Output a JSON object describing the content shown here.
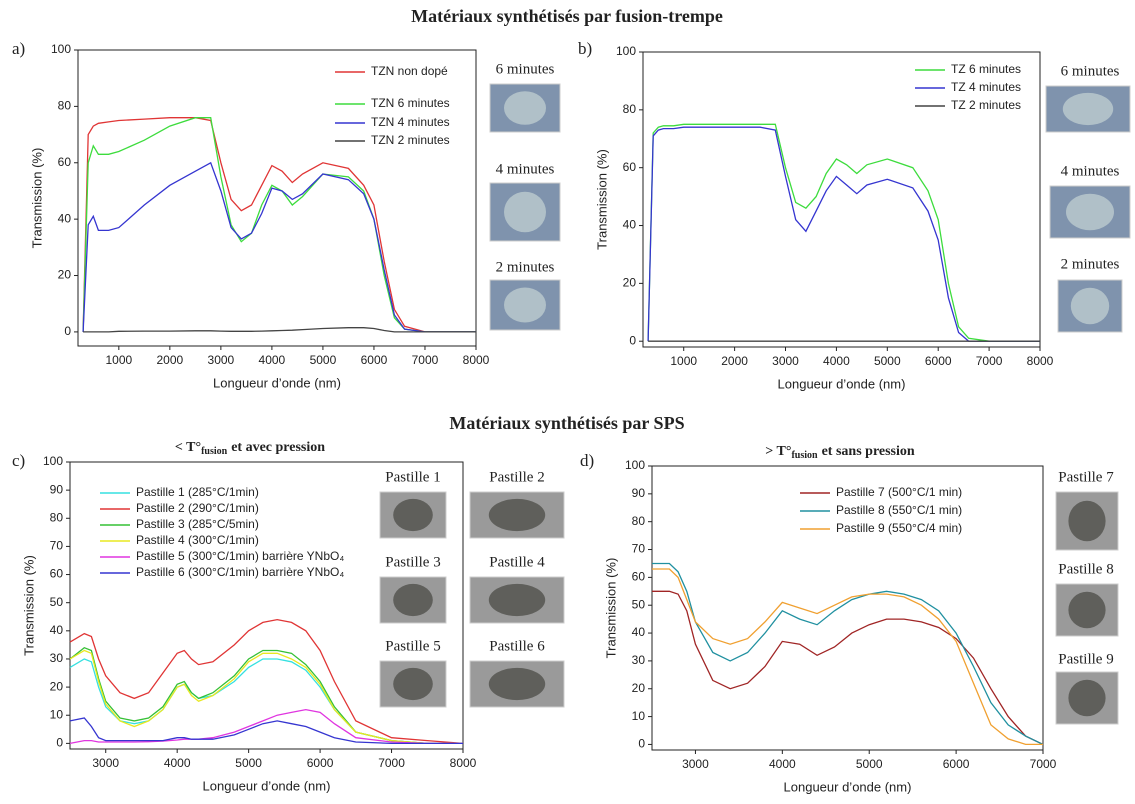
{
  "headings": {
    "top": "Matériaux synthétisés par fusion-trempe",
    "bottom": "Matériaux synthétisés par SPS"
  },
  "chart_data": [
    {
      "type": "line",
      "panel": "a)",
      "xlabel": "Longueur d’onde (nm)",
      "ylabel": "Transmission (%)",
      "x": [
        300,
        400,
        500,
        600,
        800,
        1000,
        1500,
        2000,
        2500,
        2800,
        3000,
        3200,
        3400,
        3600,
        3800,
        4000,
        4200,
        4400,
        4600,
        5000,
        5500,
        5800,
        6000,
        6200,
        6400,
        6600,
        7000,
        8000
      ],
      "xlim": [
        200,
        8000
      ],
      "xticks": [
        1000,
        2000,
        3000,
        4000,
        5000,
        6000,
        7000,
        8000
      ],
      "ylim": [
        -5,
        100
      ],
      "yticks": [
        0,
        20,
        40,
        60,
        80,
        100
      ],
      "legend": "upper right",
      "series": [
        {
          "name": "TZN non dopé",
          "color": "#e03535",
          "values": [
            0,
            70,
            73,
            74,
            74.5,
            75,
            75.5,
            76,
            76,
            75,
            60,
            47,
            43,
            45,
            52,
            59,
            57,
            53,
            56,
            60,
            58,
            52,
            45,
            25,
            8,
            2,
            0,
            0
          ]
        },
        {
          "name": "TZN 6 minutes",
          "color": "#3ddc3d",
          "values": [
            0,
            60,
            66,
            63,
            63,
            64,
            68,
            73,
            76,
            76,
            55,
            38,
            32,
            35,
            45,
            52,
            50,
            45,
            48,
            56,
            55,
            50,
            40,
            20,
            5,
            1,
            0,
            0
          ]
        },
        {
          "name": "TZN 4 minutes",
          "color": "#3535d0",
          "values": [
            0,
            38,
            41,
            36,
            36,
            37,
            45,
            52,
            57,
            60,
            50,
            37,
            33,
            35,
            42,
            51,
            50,
            47,
            49,
            56,
            54,
            49,
            40,
            22,
            6,
            1,
            0,
            0
          ]
        },
        {
          "name": "TZN 2 minutes",
          "color": "#444444",
          "values": [
            0,
            0,
            0,
            0,
            0,
            0.2,
            0.3,
            0.3,
            0.4,
            0.4,
            0.3,
            0.2,
            0.2,
            0.2,
            0.3,
            0.4,
            0.5,
            0.6,
            0.8,
            1.2,
            1.5,
            1.5,
            1.2,
            0.5,
            0,
            0,
            0,
            0
          ]
        }
      ],
      "photo_captions": [
        "6 minutes",
        "4 minutes",
        "2 minutes"
      ]
    },
    {
      "type": "line",
      "panel": "b)",
      "xlabel": "Longueur d’onde (nm)",
      "ylabel": "Transmission (%)",
      "x": [
        300,
        400,
        500,
        600,
        800,
        1000,
        1500,
        2000,
        2500,
        2800,
        3000,
        3200,
        3400,
        3600,
        3800,
        4000,
        4200,
        4400,
        4600,
        5000,
        5500,
        5800,
        6000,
        6200,
        6400,
        6600,
        7000,
        8000
      ],
      "xlim": [
        200,
        8000
      ],
      "xticks": [
        1000,
        2000,
        3000,
        4000,
        5000,
        6000,
        7000,
        8000
      ],
      "ylim": [
        -2,
        100
      ],
      "yticks": [
        0,
        20,
        40,
        60,
        80,
        100
      ],
      "legend": "upper right",
      "series": [
        {
          "name": "TZ 6 minutes",
          "color": "#3ddc3d",
          "values": [
            0,
            72,
            74,
            74.5,
            74.5,
            75,
            75,
            75,
            75,
            75,
            60,
            48,
            46,
            50,
            58,
            63,
            61,
            58,
            61,
            63,
            60,
            52,
            42,
            20,
            5,
            1,
            0,
            0
          ]
        },
        {
          "name": "TZ 4 minutes",
          "color": "#3535d0",
          "values": [
            0,
            71,
            73,
            73.5,
            73.5,
            74,
            74,
            74,
            74,
            73,
            57,
            42,
            38,
            45,
            52,
            57,
            54,
            51,
            54,
            56,
            53,
            45,
            35,
            15,
            3,
            0,
            0,
            0
          ]
        },
        {
          "name": "TZ 2 minutes",
          "color": "#444444",
          "values": [
            0,
            0,
            0,
            0,
            0,
            0,
            0,
            0,
            0,
            0,
            0,
            0,
            0,
            0,
            0,
            0,
            0,
            0,
            0,
            0,
            0,
            0,
            0,
            0,
            0,
            0,
            0,
            0
          ]
        }
      ],
      "photo_captions": [
        "6 minutes",
        "4 minutes",
        "2 minutes"
      ]
    },
    {
      "type": "line",
      "panel": "c)",
      "subtitle": {
        "pre": "< T°",
        "sub": "fusion",
        "post": "et avec pression"
      },
      "xlabel": "Longueur d’onde (nm)",
      "ylabel": "Transmission (%)",
      "x": [
        2500,
        2700,
        2800,
        2900,
        3000,
        3200,
        3400,
        3600,
        3800,
        4000,
        4100,
        4200,
        4300,
        4500,
        4800,
        5000,
        5200,
        5400,
        5600,
        5800,
        6000,
        6200,
        6500,
        7000,
        7500,
        8000
      ],
      "xlim": [
        2500,
        8000
      ],
      "xticks": [
        3000,
        4000,
        5000,
        6000,
        7000,
        8000
      ],
      "ylim": [
        -2,
        100
      ],
      "yticks": [
        0,
        10,
        20,
        30,
        40,
        50,
        60,
        70,
        80,
        90,
        100
      ],
      "legend": "upper left",
      "series": [
        {
          "name": "Pastille 1 (285°C/1min)",
          "color": "#35e0e0",
          "values": [
            27,
            30,
            29,
            20,
            13,
            8,
            7,
            8,
            12,
            20,
            21,
            18,
            16,
            17,
            22,
            27,
            30,
            30,
            29,
            26,
            20,
            12,
            4,
            1,
            0,
            0
          ]
        },
        {
          "name": "Pastille 2 (290°C/1min)",
          "color": "#e03535",
          "values": [
            36,
            39,
            38,
            30,
            24,
            18,
            16,
            18,
            25,
            32,
            33,
            30,
            28,
            29,
            35,
            40,
            43,
            44,
            43,
            40,
            33,
            22,
            8,
            2,
            1,
            0
          ]
        },
        {
          "name": "Pastille 3 (285°C/5min)",
          "color": "#35c035",
          "values": [
            30,
            34,
            33,
            23,
            15,
            9,
            8,
            9,
            13,
            21,
            22,
            18,
            16,
            18,
            24,
            30,
            33,
            33,
            32,
            28,
            22,
            13,
            4,
            1,
            0,
            0
          ]
        },
        {
          "name": "Pastille 4 (300°C/1min)",
          "color": "#e8e820",
          "values": [
            30,
            33,
            32,
            22,
            14,
            8,
            6,
            8,
            12,
            20,
            21,
            17,
            15,
            17,
            23,
            29,
            32,
            32,
            30,
            27,
            21,
            12,
            4,
            1,
            0,
            0
          ]
        },
        {
          "name": "Pastille 5 (300°C/1min) barrière YNbO₄",
          "color": "#e035e0",
          "values": [
            0,
            1,
            1,
            0.5,
            0.5,
            0.5,
            0.5,
            0.6,
            0.8,
            1.2,
            1.5,
            1.5,
            1.5,
            2,
            4,
            6,
            8,
            10,
            11,
            12,
            11,
            7,
            2,
            0.5,
            0,
            0
          ]
        },
        {
          "name": "Pastille 6 (300°C/1min) barrière YNbO₄",
          "color": "#3535d0",
          "values": [
            8,
            9,
            6,
            2,
            1,
            1,
            1,
            1,
            1,
            2,
            2,
            1.5,
            1.5,
            1.5,
            3,
            5,
            7,
            8,
            7,
            6,
            4,
            2,
            0.5,
            0,
            0,
            0
          ]
        }
      ],
      "photo_captions": [
        "Pastille 1",
        "Pastille 2",
        "Pastille 3",
        "Pastille 4",
        "Pastille 5",
        "Pastille 6"
      ]
    },
    {
      "type": "line",
      "panel": "d)",
      "subtitle": {
        "pre": "> T°",
        "sub": "fusion",
        "post": "et sans pression"
      },
      "xlabel": "Longueur d’onde (nm)",
      "ylabel": "Transmission (%)",
      "x": [
        2500,
        2700,
        2800,
        2900,
        3000,
        3200,
        3400,
        3600,
        3800,
        4000,
        4200,
        4400,
        4600,
        4800,
        5000,
        5200,
        5400,
        5600,
        5800,
        6000,
        6200,
        6400,
        6600,
        6800,
        7000
      ],
      "xlim": [
        2500,
        7000
      ],
      "xticks": [
        3000,
        4000,
        5000,
        6000,
        7000
      ],
      "ylim": [
        -2,
        100
      ],
      "yticks": [
        0,
        10,
        20,
        30,
        40,
        50,
        60,
        70,
        80,
        90,
        100
      ],
      "legend": "upper right",
      "series": [
        {
          "name": "Pastille 7 (500°C/1 min)",
          "color": "#a02525",
          "values": [
            55,
            55,
            54,
            48,
            36,
            23,
            20,
            22,
            28,
            37,
            36,
            32,
            35,
            40,
            43,
            45,
            45,
            44,
            42,
            38,
            31,
            20,
            10,
            3,
            0
          ]
        },
        {
          "name": "Pastille 8 (550°C/1 min)",
          "color": "#2090a0",
          "values": [
            65,
            65,
            62,
            55,
            44,
            33,
            30,
            33,
            40,
            48,
            45,
            43,
            48,
            52,
            54,
            55,
            54,
            52,
            48,
            40,
            28,
            15,
            7,
            3,
            0
          ]
        },
        {
          "name": "Pastille 9 (550°C/4 min)",
          "color": "#f0a030",
          "values": [
            63,
            63,
            60,
            52,
            44,
            38,
            36,
            38,
            44,
            51,
            49,
            47,
            50,
            53,
            54,
            54,
            53,
            50,
            45,
            37,
            22,
            7,
            2,
            0,
            0
          ]
        }
      ],
      "photo_captions": [
        "Pastille 7",
        "Pastille 8",
        "Pastille 9"
      ]
    }
  ]
}
